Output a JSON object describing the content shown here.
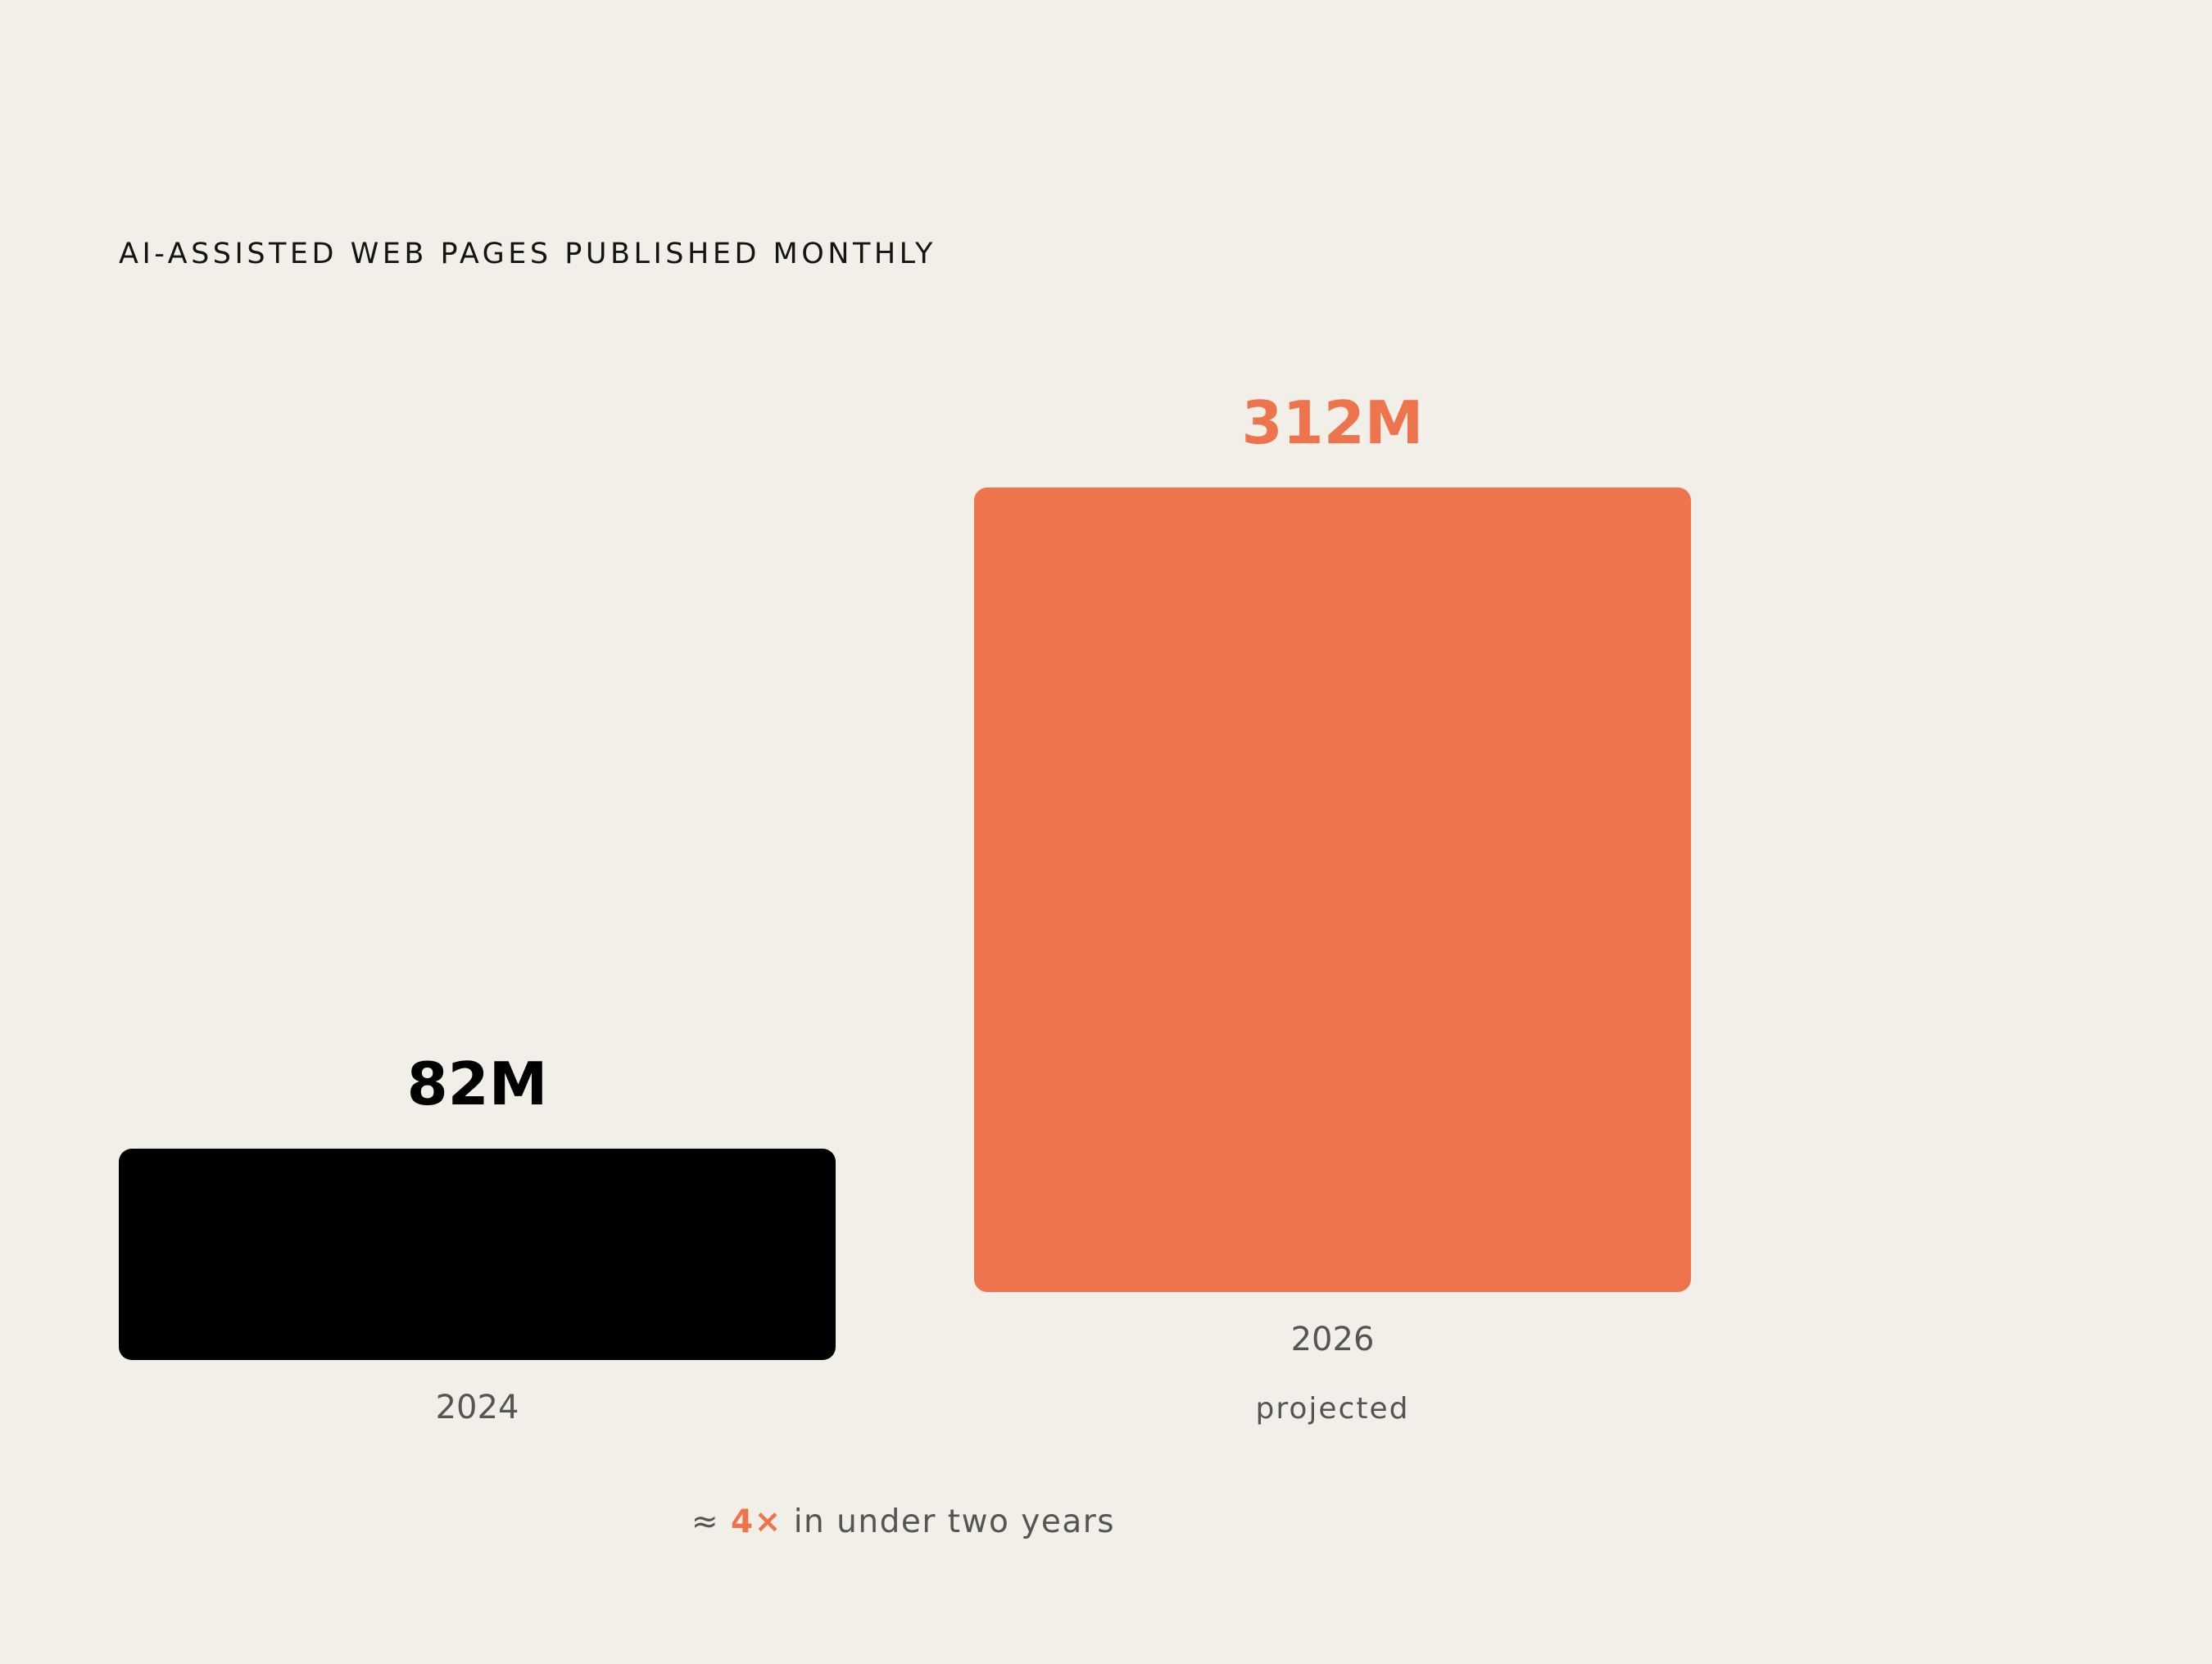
{
  "chart_data": {
    "type": "bar",
    "title": "AI-ASSISTED WEB PAGES PUBLISHED MONTHLY",
    "categories": [
      "2024",
      "2026"
    ],
    "category_notes": [
      "",
      "projected"
    ],
    "values": [
      82,
      312
    ],
    "value_labels": [
      "82M",
      "312M"
    ],
    "unit": "M",
    "ylim": [
      0,
      312
    ],
    "grid": false,
    "bar_colors": [
      "#000000",
      "#ee744e"
    ],
    "value_label_colors": [
      "#000000",
      "#ee744e"
    ]
  },
  "footnote": {
    "prefix": "≈ ",
    "highlight": "4×",
    "suffix": " in under two years",
    "highlight_color": "#ee744e"
  }
}
